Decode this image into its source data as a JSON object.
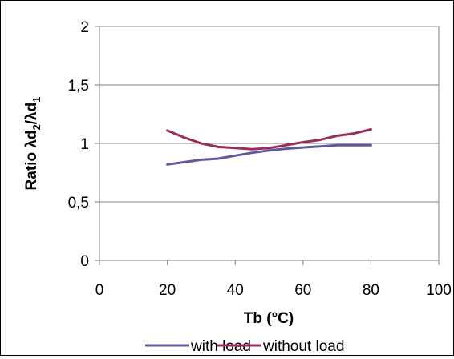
{
  "chart_data": {
    "type": "line",
    "title": "",
    "xlabel": "Tb (°C)",
    "ylabel": {
      "base": "Ratio λd",
      "sub1": "2",
      "mid": "/λd",
      "sub2": "1"
    },
    "xlim": [
      0,
      100
    ],
    "ylim": [
      0,
      2
    ],
    "x_ticks": [
      0,
      20,
      40,
      60,
      80,
      100
    ],
    "y_ticks": [
      0,
      0.5,
      1,
      1.5,
      2
    ],
    "x_tick_labels": [
      "0",
      "20",
      "40",
      "60",
      "80",
      "100"
    ],
    "y_tick_labels": [
      "0",
      "0,5",
      "1",
      "1,5",
      "2"
    ],
    "grid": "horizontal",
    "legend_position": "bottom",
    "x": [
      20,
      25,
      30,
      35,
      40,
      45,
      50,
      55,
      60,
      65,
      70,
      75,
      80
    ],
    "series": [
      {
        "name": "with load",
        "color": "#5B5B9E",
        "values": [
          0.82,
          0.84,
          0.86,
          0.87,
          0.895,
          0.92,
          0.94,
          0.955,
          0.965,
          0.975,
          0.985,
          0.985,
          0.985
        ]
      },
      {
        "name": "without load",
        "color": "#9B2D5E",
        "values": [
          1.11,
          1.05,
          1.0,
          0.97,
          0.96,
          0.95,
          0.96,
          0.985,
          1.01,
          1.03,
          1.065,
          1.085,
          1.12
        ]
      }
    ]
  }
}
